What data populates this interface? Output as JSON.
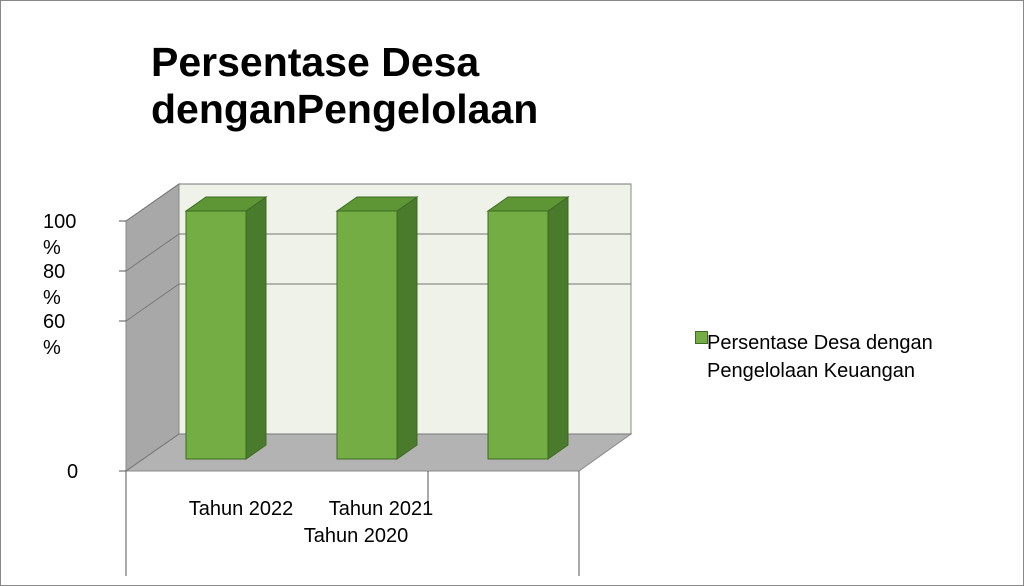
{
  "chart_data": {
    "type": "bar3d",
    "title": "Persentase Desa denganPengelolaan",
    "categories": [
      "Tahun 2022",
      "Tahun 2021",
      "Tahun 2020"
    ],
    "series": [
      {
        "name": "Persentase Desa dengan Pengelolaan Keuangan",
        "color": "#74ad44",
        "values": [
          100,
          100,
          100
        ]
      }
    ],
    "ylim": [
      0,
      100
    ],
    "yticks": [
      0,
      {
        "value": 60,
        "label": "60 %"
      },
      {
        "value": 80,
        "label": "80 %"
      },
      {
        "value": 100,
        "label": "100 %"
      }
    ],
    "grid": true,
    "legend": "right"
  }
}
